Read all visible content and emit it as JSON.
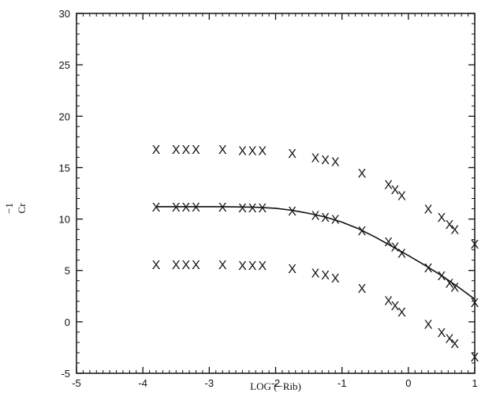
{
  "chart_data": {
    "type": "scatter",
    "title": "",
    "xlabel": "LOG (−Rib)",
    "ylabel_main": "Cr",
    "ylabel_exponent": "−1",
    "xlim": [
      -5,
      1
    ],
    "ylim": [
      -5,
      30
    ],
    "xticks": [
      "-5",
      "-4",
      "-3",
      "-2",
      "-1",
      "0",
      "1"
    ],
    "yticks": [
      "-5",
      "0",
      "5",
      "10",
      "15",
      "20",
      "25",
      "30"
    ],
    "grid": false,
    "marker": "X",
    "series": [
      {
        "x": [
          -3.8,
          -3.5,
          -3.35,
          -3.2,
          -2.8,
          -2.5,
          -2.35,
          -2.2,
          -1.75,
          -1.4,
          -1.25,
          -1.1,
          -0.7,
          -0.3,
          -0.2,
          -0.1,
          0.05,
          0.3,
          0.5,
          0.62,
          0.7,
          1.0
        ],
        "y": [
          16.8,
          16.8,
          16.8,
          16.8,
          16.8,
          16.7,
          16.7,
          16.7,
          16.4,
          16.0,
          15.8,
          15.6,
          14.5,
          13.4,
          12.9,
          12.3,
          null,
          11.0,
          10.2,
          9.5,
          9.0,
          7.6
        ]
      },
      {
        "x": [
          -3.8,
          -3.5,
          -3.35,
          -3.2,
          -2.8,
          -2.5,
          -2.35,
          -2.2,
          -1.75,
          -1.4,
          -1.25,
          -1.1,
          -0.7,
          -0.3,
          -0.2,
          -0.1,
          0.3,
          0.5,
          0.62,
          0.7,
          1.0
        ],
        "y": [
          11.2,
          11.2,
          11.2,
          11.2,
          11.2,
          11.1,
          11.1,
          11.1,
          10.8,
          10.4,
          10.2,
          10.0,
          8.9,
          7.8,
          7.3,
          6.7,
          5.3,
          4.5,
          3.8,
          3.4,
          1.9
        ]
      },
      {
        "x": [
          -3.8,
          -3.5,
          -3.35,
          -3.2,
          -2.8,
          -2.5,
          -2.35,
          -2.2,
          -1.75,
          -1.4,
          -1.25,
          -1.1,
          -0.7,
          -0.3,
          -0.2,
          -0.1,
          0.3,
          0.5,
          0.62,
          0.7,
          1.0
        ],
        "y": [
          5.6,
          5.6,
          5.6,
          5.6,
          5.6,
          5.5,
          5.5,
          5.5,
          5.2,
          4.8,
          4.6,
          4.3,
          3.3,
          2.1,
          1.6,
          1.0,
          -0.2,
          -1.0,
          -1.6,
          -2.1,
          -3.4
        ]
      }
    ],
    "fit_line": {
      "x": [
        -3.8,
        -3.3,
        -2.8,
        -2.3,
        -2.0,
        -1.75,
        -1.5,
        -1.25,
        -1.0,
        -0.75,
        -0.5,
        -0.25,
        0.0,
        0.25,
        0.5,
        0.75,
        1.0
      ],
      "y": [
        11.2,
        11.2,
        11.2,
        11.15,
        11.05,
        10.85,
        10.55,
        10.2,
        9.7,
        9.05,
        8.25,
        7.35,
        6.45,
        5.5,
        4.5,
        3.4,
        2.2
      ]
    }
  }
}
